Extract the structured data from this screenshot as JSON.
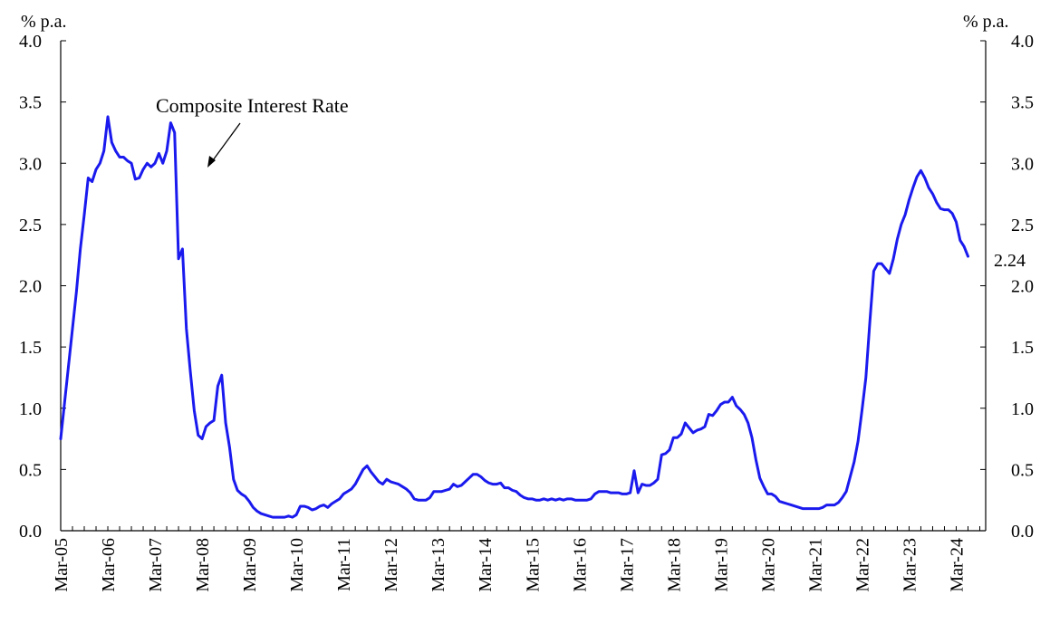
{
  "chart_data": {
    "type": "line",
    "title": "",
    "y_unit_left": "% p.a.",
    "y_unit_right": "% p.a.",
    "ylim": [
      0,
      4
    ],
    "yticks": [
      "0.0",
      "0.5",
      "1.0",
      "1.5",
      "2.0",
      "2.5",
      "3.0",
      "3.5",
      "4.0"
    ],
    "x_range": [
      "2005-03",
      "2024-09"
    ],
    "xtick_labels": [
      "Mar-05",
      "Mar-06",
      "Mar-07",
      "Mar-08",
      "Mar-09",
      "Mar-10",
      "Mar-11",
      "Mar-12",
      "Mar-13",
      "Mar-14",
      "Mar-15",
      "Mar-16",
      "Mar-17",
      "Mar-18",
      "Mar-19",
      "Mar-20",
      "Mar-21",
      "Mar-22",
      "Mar-23",
      "Mar-24"
    ],
    "grid": false,
    "annotation": {
      "text": "Composite Interest Rate"
    },
    "last_value_label": "2.24",
    "series": [
      {
        "name": "Composite Interest Rate",
        "color": "#1a1aee",
        "points": [
          [
            "2005-03",
            0.75
          ],
          [
            "2005-04",
            1.05
          ],
          [
            "2005-05",
            1.35
          ],
          [
            "2005-06",
            1.65
          ],
          [
            "2005-07",
            1.95
          ],
          [
            "2005-08",
            2.3
          ],
          [
            "2005-09",
            2.58
          ],
          [
            "2005-10",
            2.88
          ],
          [
            "2005-11",
            2.85
          ],
          [
            "2005-12",
            2.95
          ],
          [
            "2006-01",
            3.0
          ],
          [
            "2006-02",
            3.1
          ],
          [
            "2006-03",
            3.38
          ],
          [
            "2006-04",
            3.17
          ],
          [
            "2006-05",
            3.1
          ],
          [
            "2006-06",
            3.05
          ],
          [
            "2006-07",
            3.05
          ],
          [
            "2006-08",
            3.02
          ],
          [
            "2006-09",
            3.0
          ],
          [
            "2006-10",
            2.87
          ],
          [
            "2006-11",
            2.88
          ],
          [
            "2006-12",
            2.95
          ],
          [
            "2007-01",
            3.0
          ],
          [
            "2007-02",
            2.97
          ],
          [
            "2007-03",
            3.0
          ],
          [
            "2007-04",
            3.08
          ],
          [
            "2007-05",
            3.0
          ],
          [
            "2007-06",
            3.1
          ],
          [
            "2007-07",
            3.33
          ],
          [
            "2007-08",
            3.25
          ],
          [
            "2007-09",
            2.22
          ],
          [
            "2007-10",
            2.3
          ],
          [
            "2007-11",
            1.65
          ],
          [
            "2007-12",
            1.3
          ],
          [
            "2008-01",
            0.98
          ],
          [
            "2008-02",
            0.78
          ],
          [
            "2008-03",
            0.75
          ],
          [
            "2008-04",
            0.85
          ],
          [
            "2008-05",
            0.88
          ],
          [
            "2008-06",
            0.9
          ],
          [
            "2008-07",
            1.18
          ],
          [
            "2008-08",
            1.27
          ],
          [
            "2008-09",
            0.88
          ],
          [
            "2008-10",
            0.68
          ],
          [
            "2008-11",
            0.42
          ],
          [
            "2008-12",
            0.33
          ],
          [
            "2009-01",
            0.3
          ],
          [
            "2009-02",
            0.28
          ],
          [
            "2009-03",
            0.24
          ],
          [
            "2009-04",
            0.19
          ],
          [
            "2009-05",
            0.16
          ],
          [
            "2009-06",
            0.14
          ],
          [
            "2009-07",
            0.13
          ],
          [
            "2009-08",
            0.12
          ],
          [
            "2009-09",
            0.11
          ],
          [
            "2009-10",
            0.11
          ],
          [
            "2009-11",
            0.11
          ],
          [
            "2009-12",
            0.11
          ],
          [
            "2010-01",
            0.12
          ],
          [
            "2010-02",
            0.11
          ],
          [
            "2010-03",
            0.13
          ],
          [
            "2010-04",
            0.2
          ],
          [
            "2010-05",
            0.2
          ],
          [
            "2010-06",
            0.19
          ],
          [
            "2010-07",
            0.17
          ],
          [
            "2010-08",
            0.18
          ],
          [
            "2010-09",
            0.2
          ],
          [
            "2010-10",
            0.21
          ],
          [
            "2010-11",
            0.19
          ],
          [
            "2010-12",
            0.22
          ],
          [
            "2011-01",
            0.24
          ],
          [
            "2011-02",
            0.26
          ],
          [
            "2011-03",
            0.3
          ],
          [
            "2011-04",
            0.32
          ],
          [
            "2011-05",
            0.34
          ],
          [
            "2011-06",
            0.38
          ],
          [
            "2011-07",
            0.44
          ],
          [
            "2011-08",
            0.5
          ],
          [
            "2011-09",
            0.53
          ],
          [
            "2011-10",
            0.48
          ],
          [
            "2011-11",
            0.44
          ],
          [
            "2011-12",
            0.4
          ],
          [
            "2012-01",
            0.38
          ],
          [
            "2012-02",
            0.42
          ],
          [
            "2012-03",
            0.4
          ],
          [
            "2012-04",
            0.39
          ],
          [
            "2012-05",
            0.38
          ],
          [
            "2012-06",
            0.36
          ],
          [
            "2012-07",
            0.34
          ],
          [
            "2012-08",
            0.31
          ],
          [
            "2012-09",
            0.26
          ],
          [
            "2012-10",
            0.25
          ],
          [
            "2012-11",
            0.25
          ],
          [
            "2012-12",
            0.25
          ],
          [
            "2013-01",
            0.27
          ],
          [
            "2013-02",
            0.32
          ],
          [
            "2013-03",
            0.32
          ],
          [
            "2013-04",
            0.32
          ],
          [
            "2013-05",
            0.33
          ],
          [
            "2013-06",
            0.34
          ],
          [
            "2013-07",
            0.38
          ],
          [
            "2013-08",
            0.36
          ],
          [
            "2013-09",
            0.37
          ],
          [
            "2013-10",
            0.4
          ],
          [
            "2013-11",
            0.43
          ],
          [
            "2013-12",
            0.46
          ],
          [
            "2014-01",
            0.46
          ],
          [
            "2014-02",
            0.44
          ],
          [
            "2014-03",
            0.41
          ],
          [
            "2014-04",
            0.39
          ],
          [
            "2014-05",
            0.38
          ],
          [
            "2014-06",
            0.38
          ],
          [
            "2014-07",
            0.39
          ],
          [
            "2014-08",
            0.35
          ],
          [
            "2014-09",
            0.35
          ],
          [
            "2014-10",
            0.33
          ],
          [
            "2014-11",
            0.32
          ],
          [
            "2014-12",
            0.29
          ],
          [
            "2015-01",
            0.27
          ],
          [
            "2015-02",
            0.26
          ],
          [
            "2015-03",
            0.26
          ],
          [
            "2015-04",
            0.25
          ],
          [
            "2015-05",
            0.25
          ],
          [
            "2015-06",
            0.26
          ],
          [
            "2015-07",
            0.25
          ],
          [
            "2015-08",
            0.26
          ],
          [
            "2015-09",
            0.25
          ],
          [
            "2015-10",
            0.26
          ],
          [
            "2015-11",
            0.25
          ],
          [
            "2015-12",
            0.26
          ],
          [
            "2016-01",
            0.26
          ],
          [
            "2016-02",
            0.25
          ],
          [
            "2016-03",
            0.25
          ],
          [
            "2016-04",
            0.25
          ],
          [
            "2016-05",
            0.25
          ],
          [
            "2016-06",
            0.26
          ],
          [
            "2016-07",
            0.3
          ],
          [
            "2016-08",
            0.32
          ],
          [
            "2016-09",
            0.32
          ],
          [
            "2016-10",
            0.32
          ],
          [
            "2016-11",
            0.31
          ],
          [
            "2016-12",
            0.31
          ],
          [
            "2017-01",
            0.31
          ],
          [
            "2017-02",
            0.3
          ],
          [
            "2017-03",
            0.3
          ],
          [
            "2017-04",
            0.31
          ],
          [
            "2017-05",
            0.49
          ],
          [
            "2017-06",
            0.31
          ],
          [
            "2017-07",
            0.38
          ],
          [
            "2017-08",
            0.37
          ],
          [
            "2017-09",
            0.37
          ],
          [
            "2017-10",
            0.39
          ],
          [
            "2017-11",
            0.42
          ],
          [
            "2017-12",
            0.62
          ],
          [
            "2018-01",
            0.63
          ],
          [
            "2018-02",
            0.66
          ],
          [
            "2018-03",
            0.76
          ],
          [
            "2018-04",
            0.76
          ],
          [
            "2018-05",
            0.79
          ],
          [
            "2018-06",
            0.88
          ],
          [
            "2018-07",
            0.84
          ],
          [
            "2018-08",
            0.8
          ],
          [
            "2018-09",
            0.82
          ],
          [
            "2018-10",
            0.83
          ],
          [
            "2018-11",
            0.85
          ],
          [
            "2018-12",
            0.95
          ],
          [
            "2019-01",
            0.94
          ],
          [
            "2019-02",
            0.98
          ],
          [
            "2019-03",
            1.03
          ],
          [
            "2019-04",
            1.05
          ],
          [
            "2019-05",
            1.05
          ],
          [
            "2019-06",
            1.09
          ],
          [
            "2019-07",
            1.02
          ],
          [
            "2019-08",
            0.99
          ],
          [
            "2019-09",
            0.95
          ],
          [
            "2019-10",
            0.88
          ],
          [
            "2019-11",
            0.76
          ],
          [
            "2019-12",
            0.58
          ],
          [
            "2020-01",
            0.43
          ],
          [
            "2020-02",
            0.36
          ],
          [
            "2020-03",
            0.3
          ],
          [
            "2020-04",
            0.3
          ],
          [
            "2020-05",
            0.28
          ],
          [
            "2020-06",
            0.24
          ],
          [
            "2020-07",
            0.23
          ],
          [
            "2020-08",
            0.22
          ],
          [
            "2020-09",
            0.21
          ],
          [
            "2020-10",
            0.2
          ],
          [
            "2020-11",
            0.19
          ],
          [
            "2020-12",
            0.18
          ],
          [
            "2021-01",
            0.18
          ],
          [
            "2021-02",
            0.18
          ],
          [
            "2021-03",
            0.18
          ],
          [
            "2021-04",
            0.18
          ],
          [
            "2021-05",
            0.19
          ],
          [
            "2021-06",
            0.21
          ],
          [
            "2021-07",
            0.21
          ],
          [
            "2021-08",
            0.21
          ],
          [
            "2021-09",
            0.23
          ],
          [
            "2021-10",
            0.27
          ],
          [
            "2021-11",
            0.32
          ],
          [
            "2021-12",
            0.44
          ],
          [
            "2022-01",
            0.56
          ],
          [
            "2022-02",
            0.73
          ],
          [
            "2022-03",
            0.98
          ],
          [
            "2022-04",
            1.25
          ],
          [
            "2022-05",
            1.7
          ],
          [
            "2022-06",
            2.12
          ],
          [
            "2022-07",
            2.18
          ],
          [
            "2022-08",
            2.18
          ],
          [
            "2022-09",
            2.14
          ],
          [
            "2022-10",
            2.1
          ],
          [
            "2022-11",
            2.22
          ],
          [
            "2022-12",
            2.38
          ],
          [
            "2023-01",
            2.5
          ],
          [
            "2023-02",
            2.58
          ],
          [
            "2023-03",
            2.7
          ],
          [
            "2023-04",
            2.8
          ],
          [
            "2023-05",
            2.89
          ],
          [
            "2023-06",
            2.94
          ],
          [
            "2023-07",
            2.88
          ],
          [
            "2023-08",
            2.8
          ],
          [
            "2023-09",
            2.75
          ],
          [
            "2023-10",
            2.68
          ],
          [
            "2023-11",
            2.63
          ],
          [
            "2023-12",
            2.62
          ],
          [
            "2024-01",
            2.62
          ],
          [
            "2024-02",
            2.59
          ],
          [
            "2024-03",
            2.52
          ],
          [
            "2024-04",
            2.37
          ],
          [
            "2024-05",
            2.32
          ],
          [
            "2024-06",
            2.24
          ]
        ]
      }
    ]
  }
}
